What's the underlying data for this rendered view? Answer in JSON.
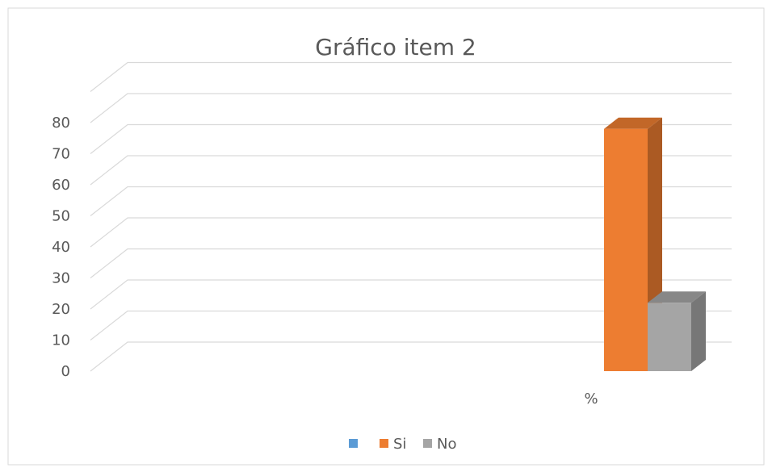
{
  "chart_data": {
    "type": "bar",
    "title": "Gráfico item 2",
    "categories": [
      "%"
    ],
    "series": [
      {
        "name": "",
        "values": [
          0
        ],
        "color": "#5B9BD5"
      },
      {
        "name": "Si",
        "values": [
          78
        ],
        "color": "#ED7D31"
      },
      {
        "name": "No",
        "values": [
          22
        ],
        "color": "#A5A5A5"
      }
    ],
    "y_ticks": [
      "0",
      "10",
      "20",
      "30",
      "40",
      "50",
      "60",
      "70",
      "80"
    ],
    "ylim": [
      0,
      90
    ],
    "grid": true,
    "legend_position": "bottom",
    "style": "3d-clustered-column"
  }
}
